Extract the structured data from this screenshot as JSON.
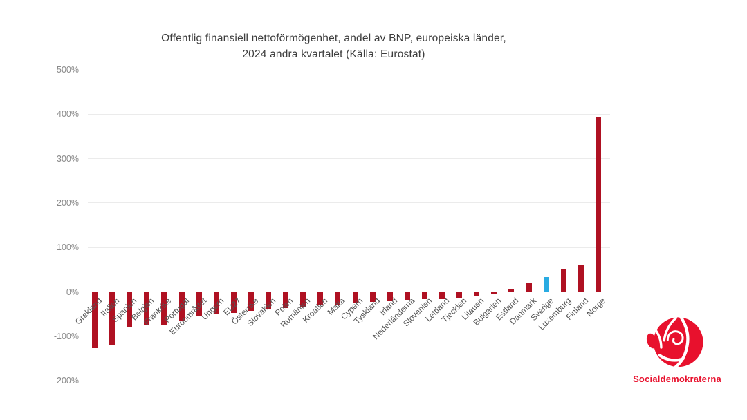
{
  "title": {
    "line1": "Offentlig finansiell nettoförmögenhet, andel av BNP, europeiska länder,",
    "line2": "2024 andra kvartalet (Källa: Eurostat)"
  },
  "chart_data": {
    "type": "bar",
    "title": "Offentlig finansiell nettoförmögenhet, andel av BNP, europeiska länder, 2024 andra kvartalet (Källa: Eurostat)",
    "source": "Eurostat",
    "unit": "% av BNP",
    "categories": [
      "Grekland",
      "Italien",
      "Spanien",
      "Belgien",
      "Frankrike",
      "Portugal",
      "Euroområdet",
      "Ungern",
      "EU27",
      "Österrike",
      "Slovakien",
      "Polen",
      "Rumänien",
      "Kroatien",
      "Malta",
      "Cypern",
      "Tyskland",
      "Irland",
      "Nederländerna",
      "Slovenien",
      "Lettland",
      "Tjeckien",
      "Litauen",
      "Bulgarien",
      "Estland",
      "Danmark",
      "Sverige",
      "Luxemburg",
      "Finland",
      "Norge"
    ],
    "values": [
      -126,
      -121,
      -78,
      -76,
      -74,
      -65,
      -55,
      -50,
      -47,
      -43,
      -40,
      -36,
      -33,
      -31,
      -29,
      -25,
      -23,
      -21,
      -19,
      -17,
      -16,
      -15,
      -9,
      -6,
      7,
      20,
      33,
      51,
      60,
      393
    ],
    "highlight_category": "Sverige",
    "colors": {
      "bar": "#AF1122",
      "highlight": "#29ABE2"
    },
    "yticks": [
      {
        "value": 500,
        "label": "500%"
      },
      {
        "value": 400,
        "label": "400%"
      },
      {
        "value": 300,
        "label": "300%"
      },
      {
        "value": 200,
        "label": "200%"
      },
      {
        "value": 100,
        "label": "100%"
      },
      {
        "value": 0,
        "label": "0%"
      },
      {
        "value": -100,
        "label": "-100%"
      },
      {
        "value": -200,
        "label": "-200%"
      }
    ],
    "ylim": [
      -200,
      500
    ],
    "grid": true,
    "legend": false
  },
  "logo": {
    "wordmark": "Socialdemokraterna",
    "color": "#E8112D",
    "icon": "rose-icon"
  }
}
